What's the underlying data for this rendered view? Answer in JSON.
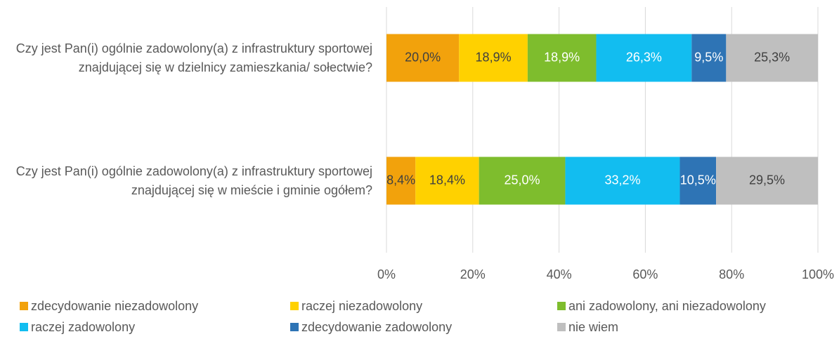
{
  "chart_data": {
    "type": "bar",
    "orientation": "horizontal",
    "stacked": "percent",
    "categories": [
      "Czy jest Pan(i) ogólnie zadowolony(a) z infrastruktury sportowej znajdującej się w dzielnicy zamieszkania/ sołectwie?",
      "Czy jest Pan(i) ogólnie zadowolony(a) z infrastruktury sportowej znajdującej się w mieście i gminie ogółem?"
    ],
    "series": [
      {
        "name": "zdecydowanie niezadowolony",
        "color": "#f2a20c",
        "label_color": "#404040",
        "values": [
          20.0,
          8.4
        ],
        "value_labels": [
          "20,0%",
          "8,4%"
        ]
      },
      {
        "name": "raczej niezadowolony",
        "color": "#ffd100",
        "label_color": "#404040",
        "values": [
          18.9,
          18.4
        ],
        "value_labels": [
          "18,9%",
          "18,4%"
        ]
      },
      {
        "name": "ani zadowolony, ani niezadowolony",
        "color": "#7ebd2d",
        "label_color": "#ffffff",
        "values": [
          18.9,
          25.0
        ],
        "value_labels": [
          "18,9%",
          "25,0%"
        ]
      },
      {
        "name": "raczej zadowolony",
        "color": "#12bdf0",
        "label_color": "#ffffff",
        "values": [
          26.3,
          33.2
        ],
        "value_labels": [
          "26,3%",
          "33,2%"
        ]
      },
      {
        "name": "zdecydowanie zadowolony",
        "color": "#2e74b5",
        "label_color": "#ffffff",
        "values": [
          9.5,
          10.5
        ],
        "value_labels": [
          "9,5%",
          "10,5%"
        ]
      },
      {
        "name": "nie wiem",
        "color": "#bfbfbf",
        "label_color": "#404040",
        "values": [
          25.3,
          29.5
        ],
        "value_labels": [
          "25,3%",
          "29,5%"
        ]
      }
    ],
    "xlim": [
      0,
      100
    ],
    "xticks": [
      {
        "value": 0,
        "label": "0%"
      },
      {
        "value": 20,
        "label": "20%"
      },
      {
        "value": 40,
        "label": "40%"
      },
      {
        "value": 60,
        "label": "60%"
      },
      {
        "value": 80,
        "label": "80%"
      },
      {
        "value": 100,
        "label": "100%"
      }
    ],
    "grid": true,
    "legend": "bottom"
  }
}
